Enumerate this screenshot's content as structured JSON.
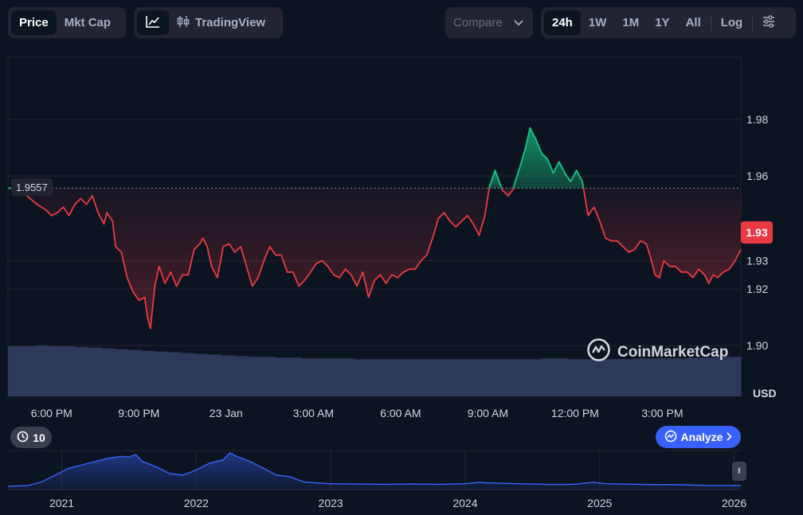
{
  "toolbar": {
    "metric_tabs": [
      {
        "label": "Price",
        "active": true
      },
      {
        "label": "Mkt Cap",
        "active": false
      }
    ],
    "chart_type": {
      "line_icon": "line-chart-icon",
      "candle_icon": "candlestick-icon",
      "tradingview_label": "TradingView"
    },
    "compare_label": "Compare",
    "ranges": [
      {
        "label": "24h",
        "active": true
      },
      {
        "label": "1W",
        "active": false
      },
      {
        "label": "1M",
        "active": false
      },
      {
        "label": "1Y",
        "active": false
      },
      {
        "label": "All",
        "active": false
      }
    ],
    "log_label": "Log",
    "settings_icon": "sliders-icon"
  },
  "chart_data": {
    "type": "area",
    "currency_unit": "USD",
    "reference_price": 1.9557,
    "reference_label": "1.9557",
    "current_price_label": "1.93",
    "y_ticks": [
      1.9,
      1.92,
      1.93,
      1.96,
      1.98
    ],
    "y_tick_labels": [
      "1.90",
      "1.92",
      "1.93",
      "1.96",
      "1.98"
    ],
    "ylim": [
      1.882,
      2.002
    ],
    "x_ticks": [
      "6:00 PM",
      "9:00 PM",
      "23 Jan",
      "3:00 AM",
      "6:00 AM",
      "9:00 AM",
      "12:00 PM",
      "3:00 PM"
    ],
    "x_tick_hours": [
      2.1,
      5.1,
      8.1,
      11.1,
      14.1,
      17.1,
      20.1,
      23.1
    ],
    "x_range_hours": [
      0.6,
      25.8
    ],
    "series": [
      {
        "values": [
          [
            0.6,
            1.9557
          ],
          [
            1.0,
            1.9557
          ],
          [
            1.3,
            1.9525
          ],
          [
            1.6,
            1.95
          ],
          [
            1.9,
            1.948
          ],
          [
            2.1,
            1.946
          ],
          [
            2.3,
            1.947
          ],
          [
            2.5,
            1.949
          ],
          [
            2.7,
            1.946
          ],
          [
            2.9,
            1.95
          ],
          [
            3.1,
            1.952
          ],
          [
            3.3,
            1.95
          ],
          [
            3.5,
            1.953
          ],
          [
            3.7,
            1.947
          ],
          [
            3.9,
            1.943
          ],
          [
            4.0,
            1.947
          ],
          [
            4.2,
            1.944
          ],
          [
            4.3,
            1.935
          ],
          [
            4.5,
            1.933
          ],
          [
            4.7,
            1.924
          ],
          [
            4.9,
            1.919
          ],
          [
            5.1,
            1.916
          ],
          [
            5.3,
            1.917
          ],
          [
            5.4,
            1.91
          ],
          [
            5.5,
            1.906
          ],
          [
            5.65,
            1.921
          ],
          [
            5.8,
            1.928
          ],
          [
            6.0,
            1.922
          ],
          [
            6.2,
            1.926
          ],
          [
            6.4,
            1.921
          ],
          [
            6.6,
            1.925
          ],
          [
            6.8,
            1.925
          ],
          [
            7.0,
            1.934
          ],
          [
            7.2,
            1.936
          ],
          [
            7.3,
            1.938
          ],
          [
            7.45,
            1.935
          ],
          [
            7.6,
            1.928
          ],
          [
            7.8,
            1.924
          ],
          [
            8.0,
            1.935
          ],
          [
            8.2,
            1.936
          ],
          [
            8.4,
            1.933
          ],
          [
            8.6,
            1.935
          ],
          [
            8.8,
            1.928
          ],
          [
            9.0,
            1.921
          ],
          [
            9.2,
            1.924
          ],
          [
            9.4,
            1.93
          ],
          [
            9.6,
            1.935
          ],
          [
            9.8,
            1.932
          ],
          [
            10.0,
            1.932
          ],
          [
            10.2,
            1.926
          ],
          [
            10.4,
            1.926
          ],
          [
            10.6,
            1.921
          ],
          [
            10.8,
            1.923
          ],
          [
            11.0,
            1.926
          ],
          [
            11.2,
            1.929
          ],
          [
            11.4,
            1.93
          ],
          [
            11.6,
            1.928
          ],
          [
            11.8,
            1.925
          ],
          [
            12.0,
            1.924
          ],
          [
            12.2,
            1.927
          ],
          [
            12.4,
            1.925
          ],
          [
            12.6,
            1.921
          ],
          [
            12.8,
            1.926
          ],
          [
            13.0,
            1.917
          ],
          [
            13.2,
            1.923
          ],
          [
            13.4,
            1.925
          ],
          [
            13.6,
            1.922
          ],
          [
            13.8,
            1.925
          ],
          [
            14.0,
            1.924
          ],
          [
            14.2,
            1.926
          ],
          [
            14.4,
            1.927
          ],
          [
            14.6,
            1.927
          ],
          [
            14.8,
            1.93
          ],
          [
            15.0,
            1.932
          ],
          [
            15.2,
            1.938
          ],
          [
            15.4,
            1.945
          ],
          [
            15.6,
            1.947
          ],
          [
            15.8,
            1.944
          ],
          [
            16.0,
            1.942
          ],
          [
            16.2,
            1.944
          ],
          [
            16.4,
            1.946
          ],
          [
            16.6,
            1.943
          ],
          [
            16.8,
            1.939
          ],
          [
            17.0,
            1.946
          ],
          [
            17.15,
            1.956
          ],
          [
            17.35,
            1.962
          ],
          [
            17.6,
            1.955
          ],
          [
            17.8,
            1.953
          ],
          [
            17.95,
            1.955
          ],
          [
            18.2,
            1.963
          ],
          [
            18.4,
            1.97
          ],
          [
            18.55,
            1.977
          ],
          [
            18.75,
            1.973
          ],
          [
            18.95,
            1.968
          ],
          [
            19.15,
            1.966
          ],
          [
            19.35,
            1.961
          ],
          [
            19.55,
            1.965
          ],
          [
            19.75,
            1.961
          ],
          [
            19.95,
            1.958
          ],
          [
            20.15,
            1.962
          ],
          [
            20.35,
            1.958
          ],
          [
            20.55,
            1.946
          ],
          [
            20.75,
            1.949
          ],
          [
            20.95,
            1.944
          ],
          [
            21.15,
            1.938
          ],
          [
            21.35,
            1.937
          ],
          [
            21.55,
            1.937
          ],
          [
            21.75,
            1.935
          ],
          [
            21.95,
            1.933
          ],
          [
            22.15,
            1.934
          ],
          [
            22.35,
            1.937
          ],
          [
            22.55,
            1.936
          ],
          [
            22.7,
            1.931
          ],
          [
            22.85,
            1.925
          ],
          [
            23.0,
            1.924
          ],
          [
            23.15,
            1.93
          ],
          [
            23.35,
            1.928
          ],
          [
            23.55,
            1.928
          ],
          [
            23.75,
            1.926
          ],
          [
            23.95,
            1.926
          ],
          [
            24.15,
            1.924
          ],
          [
            24.35,
            1.927
          ],
          [
            24.55,
            1.925
          ],
          [
            24.7,
            1.922
          ],
          [
            24.85,
            1.925
          ],
          [
            25.0,
            1.924
          ],
          [
            25.2,
            1.926
          ],
          [
            25.4,
            1.927
          ],
          [
            25.6,
            1.93
          ],
          [
            25.8,
            1.934
          ]
        ]
      }
    ],
    "volume_bars": [
      0.66,
      0.66,
      0.67,
      0.66,
      0.66,
      0.65,
      0.64,
      0.63,
      0.62,
      0.61,
      0.6,
      0.59,
      0.58,
      0.57,
      0.56,
      0.55,
      0.54,
      0.53,
      0.52,
      0.52,
      0.51,
      0.51,
      0.5,
      0.5,
      0.5,
      0.5,
      0.49,
      0.49,
      0.49,
      0.49,
      0.49,
      0.49,
      0.49,
      0.49,
      0.49,
      0.49,
      0.49,
      0.49,
      0.49,
      0.49,
      0.5,
      0.5,
      0.49,
      0.49,
      0.49,
      0.49,
      0.49,
      0.5,
      0.5,
      0.5,
      0.5,
      0.51,
      0.51,
      0.52,
      0.52
    ],
    "navigator": {
      "x_tick_labels": [
        "2021",
        "2022",
        "2023",
        "2024",
        "2025",
        "2026"
      ],
      "x_tick_years": [
        2021,
        2022,
        2023,
        2024,
        2025,
        2026
      ],
      "x_range_years": [
        2020.6,
        2026.05
      ],
      "values": [
        [
          2020.6,
          0.02
        ],
        [
          2020.75,
          0.05
        ],
        [
          2020.85,
          0.15
        ],
        [
          2020.95,
          0.35
        ],
        [
          2021.05,
          0.55
        ],
        [
          2021.15,
          0.65
        ],
        [
          2021.25,
          0.75
        ],
        [
          2021.35,
          0.85
        ],
        [
          2021.45,
          0.9
        ],
        [
          2021.5,
          0.88
        ],
        [
          2021.55,
          0.95
        ],
        [
          2021.6,
          0.75
        ],
        [
          2021.7,
          0.6
        ],
        [
          2021.8,
          0.4
        ],
        [
          2021.9,
          0.35
        ],
        [
          2022.0,
          0.5
        ],
        [
          2022.1,
          0.7
        ],
        [
          2022.2,
          0.8
        ],
        [
          2022.25,
          1.0
        ],
        [
          2022.3,
          0.9
        ],
        [
          2022.4,
          0.75
        ],
        [
          2022.5,
          0.55
        ],
        [
          2022.6,
          0.35
        ],
        [
          2022.7,
          0.3
        ],
        [
          2022.8,
          0.15
        ],
        [
          2022.9,
          0.12
        ],
        [
          2023.0,
          0.1
        ],
        [
          2023.2,
          0.09
        ],
        [
          2023.4,
          0.08
        ],
        [
          2023.6,
          0.09
        ],
        [
          2023.8,
          0.08
        ],
        [
          2024.0,
          0.1
        ],
        [
          2024.1,
          0.14
        ],
        [
          2024.2,
          0.12
        ],
        [
          2024.4,
          0.1
        ],
        [
          2024.6,
          0.08
        ],
        [
          2024.8,
          0.08
        ],
        [
          2024.95,
          0.14
        ],
        [
          2025.05,
          0.1
        ],
        [
          2025.3,
          0.08
        ],
        [
          2025.6,
          0.07
        ],
        [
          2025.8,
          0.05
        ],
        [
          2026.05,
          0.05
        ]
      ]
    },
    "history_badge": "10",
    "analyze_label": "Analyze",
    "brand_label": "CoinMarketCap"
  },
  "colors": {
    "background": "#0d1421",
    "grid": "#222531",
    "up": "#16c784",
    "down": "#ea3943",
    "volume": "#2e3858",
    "navigator_line": "#3861fb",
    "accent": "#3861fb"
  }
}
